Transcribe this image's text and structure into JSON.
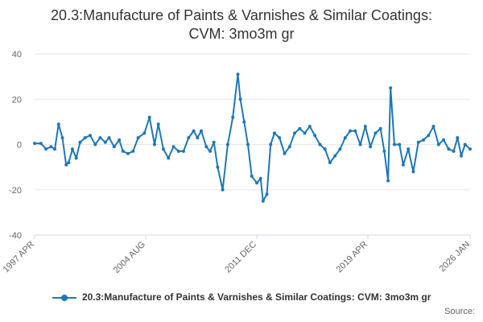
{
  "title_line1": "20.3:Manufacture of Paints & Varnishes & Similar Coatings:",
  "title_line2": "CVM: 3mo3m gr",
  "source": "Source:",
  "colors": {
    "series": "#1f77b4",
    "grid": "#e6e6e6",
    "axis": "#ccd6eb"
  },
  "chart_data": {
    "type": "line",
    "title": "20.3:Manufacture of Paints & Varnishes & Similar Coatings: CVM: 3mo3m gr",
    "xlabel": "",
    "ylabel": "",
    "ylim": [
      -40,
      40
    ],
    "xlim": [
      "1997-04",
      "2026-01"
    ],
    "yticks": [
      "40",
      "20",
      "0",
      "-20",
      "-40"
    ],
    "xticks": [
      "1997 APR",
      "2004 AUG",
      "2011 DEC",
      "2019 APR",
      "2026 JAN"
    ],
    "grid": true,
    "legend_position": "bottom",
    "series": [
      {
        "name": "20.3:Manufacture of Paints & Varnishes & Similar Coatings: CVM: 3mo3m gr",
        "points": [
          [
            "1997-04",
            0.5
          ],
          [
            "1997-09",
            0.5
          ],
          [
            "1998-01",
            -2
          ],
          [
            "1998-05",
            -1
          ],
          [
            "1998-08",
            -2
          ],
          [
            "1998-11",
            9
          ],
          [
            "1999-02",
            3
          ],
          [
            "1999-05",
            -9
          ],
          [
            "1999-07",
            -8
          ],
          [
            "1999-10",
            -2
          ],
          [
            "2000-01",
            -6
          ],
          [
            "2000-04",
            1
          ],
          [
            "2000-08",
            3
          ],
          [
            "2000-12",
            4
          ],
          [
            "2001-04",
            0
          ],
          [
            "2001-08",
            3
          ],
          [
            "2001-12",
            1
          ],
          [
            "2002-03",
            3
          ],
          [
            "2002-07",
            -1
          ],
          [
            "2002-11",
            2
          ],
          [
            "2003-02",
            -3
          ],
          [
            "2003-06",
            -4
          ],
          [
            "2003-10",
            -3
          ],
          [
            "2004-02",
            3
          ],
          [
            "2004-07",
            5
          ],
          [
            "2004-11",
            12
          ],
          [
            "2005-03",
            0
          ],
          [
            "2005-06",
            9
          ],
          [
            "2005-10",
            -2
          ],
          [
            "2006-02",
            -6
          ],
          [
            "2006-06",
            -1
          ],
          [
            "2006-10",
            -3
          ],
          [
            "2007-02",
            -3
          ],
          [
            "2007-06",
            3
          ],
          [
            "2007-10",
            6
          ],
          [
            "2008-01",
            3
          ],
          [
            "2008-04",
            6
          ],
          [
            "2008-08",
            -1
          ],
          [
            "2008-11",
            -3
          ],
          [
            "2009-02",
            1
          ],
          [
            "2009-05",
            -10
          ],
          [
            "2009-09",
            -20
          ],
          [
            "2010-01",
            0
          ],
          [
            "2010-05",
            12
          ],
          [
            "2010-09",
            31
          ],
          [
            "2010-11",
            20
          ],
          [
            "2011-02",
            10
          ],
          [
            "2011-05",
            0
          ],
          [
            "2011-08",
            -14
          ],
          [
            "2011-12",
            -17
          ],
          [
            "2012-03",
            -15
          ],
          [
            "2012-05",
            -25
          ],
          [
            "2012-08",
            -22
          ],
          [
            "2012-11",
            0
          ],
          [
            "2013-02",
            5
          ],
          [
            "2013-06",
            3
          ],
          [
            "2013-10",
            -4
          ],
          [
            "2014-02",
            -1
          ],
          [
            "2014-06",
            5
          ],
          [
            "2014-10",
            7
          ],
          [
            "2015-02",
            5
          ],
          [
            "2015-06",
            8
          ],
          [
            "2015-10",
            4
          ],
          [
            "2016-02",
            0
          ],
          [
            "2016-06",
            -2
          ],
          [
            "2016-10",
            -8
          ],
          [
            "2017-02",
            -5
          ],
          [
            "2017-06",
            -2
          ],
          [
            "2017-10",
            3
          ],
          [
            "2018-02",
            6
          ],
          [
            "2018-06",
            6
          ],
          [
            "2018-10",
            0
          ],
          [
            "2019-02",
            8
          ],
          [
            "2019-06",
            -1
          ],
          [
            "2019-10",
            5
          ],
          [
            "2020-02",
            7
          ],
          [
            "2020-05",
            -3
          ],
          [
            "2020-08",
            -16
          ],
          [
            "2020-10",
            25
          ],
          [
            "2021-01",
            0
          ],
          [
            "2021-05",
            0
          ],
          [
            "2021-08",
            -9
          ],
          [
            "2021-12",
            -2
          ],
          [
            "2022-04",
            -12
          ],
          [
            "2022-08",
            1
          ],
          [
            "2022-12",
            2
          ],
          [
            "2023-04",
            4
          ],
          [
            "2023-08",
            8
          ],
          [
            "2023-12",
            0
          ],
          [
            "2024-04",
            2
          ],
          [
            "2024-08",
            -2
          ],
          [
            "2024-12",
            -3
          ],
          [
            "2025-03",
            3
          ],
          [
            "2025-06",
            -5
          ],
          [
            "2025-09",
            0
          ],
          [
            "2026-01",
            -2
          ]
        ]
      }
    ]
  }
}
